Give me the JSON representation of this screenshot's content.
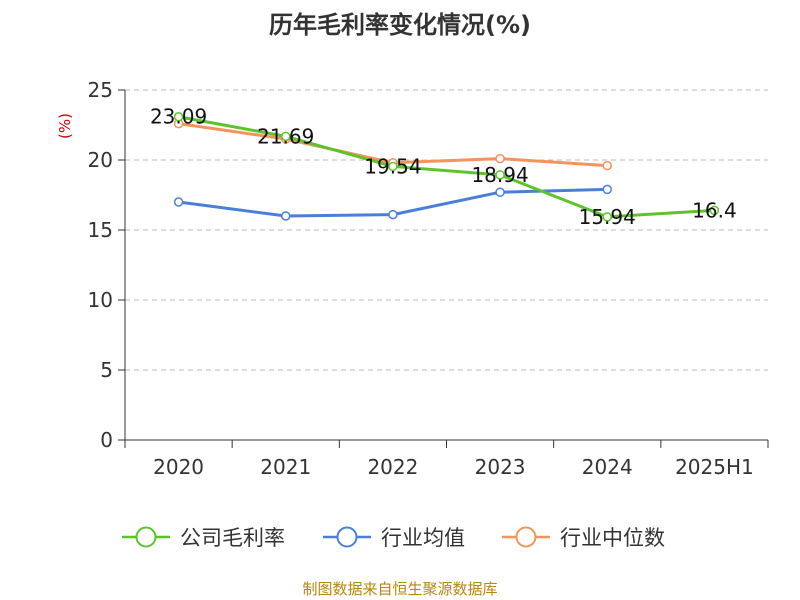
{
  "title": "历年毛利率变化情况(%)",
  "unit_label": "(%)",
  "source": "制图数据来自恒生聚源数据库",
  "colors": {
    "company": "#5bc42b",
    "industry_avg": "#4a7fd9",
    "industry_median": "#f4935b",
    "axis": "#333333",
    "grid": "#bbbbbb",
    "unit": "#cc0000",
    "source": "#b8860b"
  },
  "chart_data": {
    "type": "line",
    "title": "历年毛利率变化情况(%)",
    "ylabel": "(%)",
    "categories": [
      "2020",
      "2021",
      "2022",
      "2023",
      "2024",
      "2025H1"
    ],
    "ylim": [
      0,
      25
    ],
    "yticks": [
      "0",
      "5",
      "10",
      "15",
      "20",
      "25"
    ],
    "grid": "horizontal-dashed",
    "legend_position": "bottom",
    "series": [
      {
        "name": "公司毛利率",
        "color": "#5bc42b",
        "values": [
          23.09,
          21.69,
          19.54,
          18.94,
          15.94,
          16.4
        ],
        "labels": [
          "23.09",
          "21.69",
          "19.54",
          "18.94",
          "15.94",
          "16.4"
        ]
      },
      {
        "name": "行业均值",
        "color": "#4a7fd9",
        "values": [
          17.0,
          16.0,
          16.1,
          17.7,
          17.9,
          null
        ]
      },
      {
        "name": "行业中位数",
        "color": "#f4935b",
        "values": [
          22.6,
          21.5,
          19.8,
          20.1,
          19.6,
          null
        ]
      }
    ]
  }
}
